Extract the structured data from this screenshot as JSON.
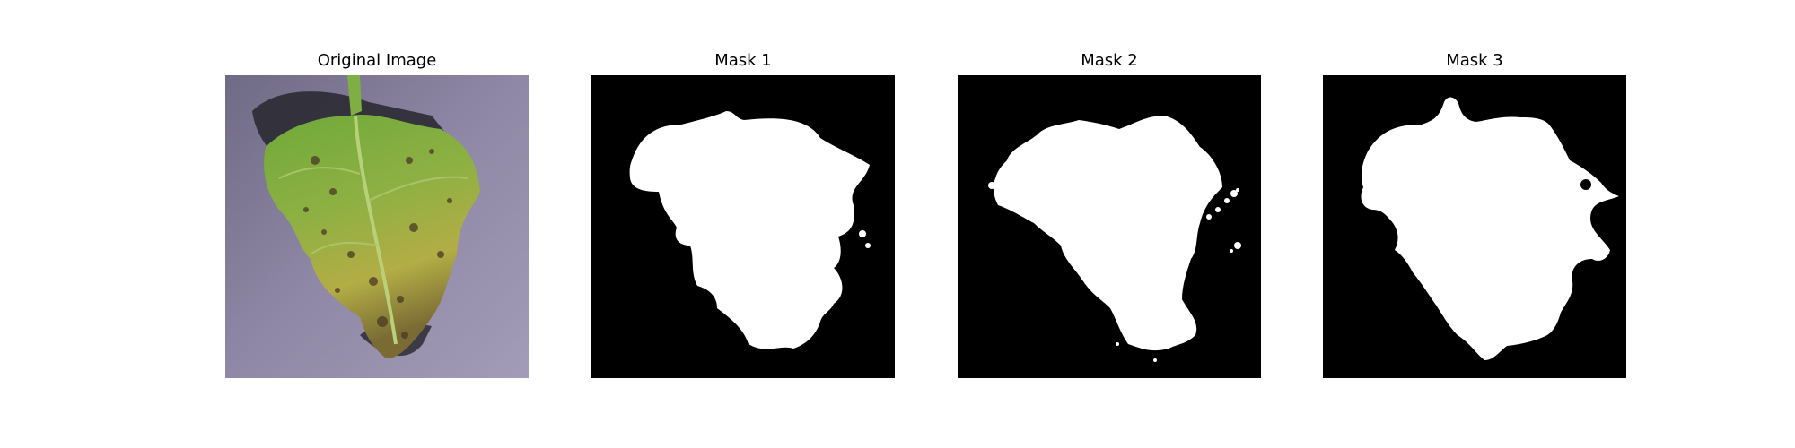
{
  "panels": [
    {
      "title": "Original Image",
      "kind": "photo",
      "subject": "leaf-photo"
    },
    {
      "title": "Mask 1",
      "kind": "mask"
    },
    {
      "title": "Mask 2",
      "kind": "mask"
    },
    {
      "title": "Mask 3",
      "kind": "mask"
    }
  ],
  "colors": {
    "background": "#ffffff",
    "mask_foreground": "#ffffff",
    "mask_background": "#000000",
    "photo_background": "#8f88a6",
    "leaf_green": "#7faa3c",
    "leaf_yellow": "#b9b84a",
    "leaf_spots": "#4a3a22",
    "shadow": "#2b2a33"
  }
}
